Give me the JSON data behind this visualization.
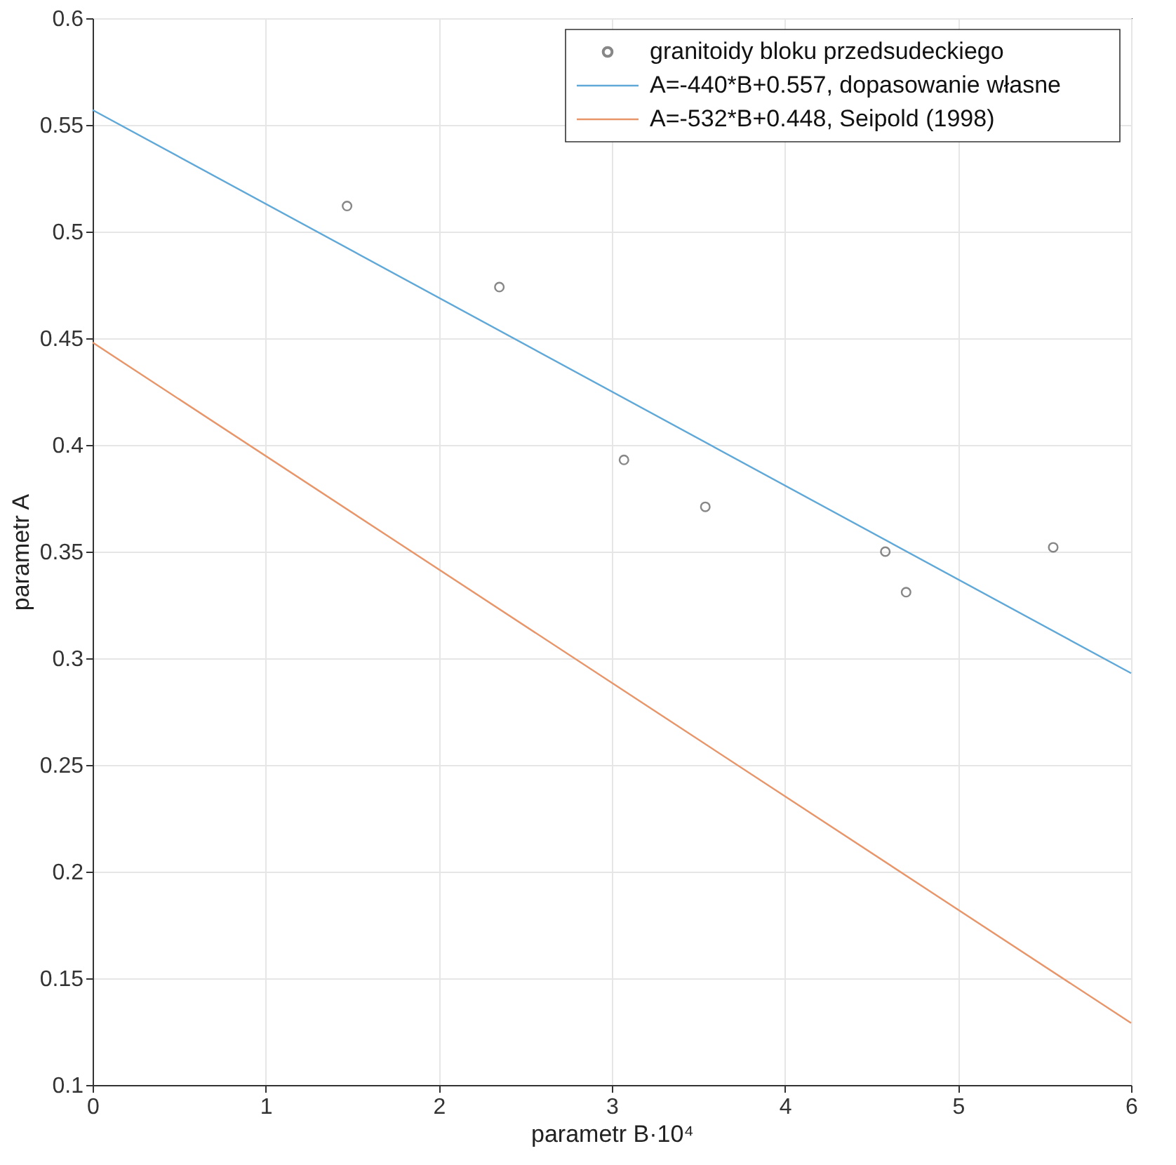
{
  "chart_data": {
    "type": "scatter",
    "xlabel": "parametr B·10⁴",
    "ylabel": "parametr A",
    "xlim": [
      0,
      6
    ],
    "ylim": [
      0.1,
      0.6
    ],
    "xticks": [
      0,
      1,
      2,
      3,
      4,
      5,
      6
    ],
    "yticks": [
      0.1,
      0.15,
      0.2,
      0.25,
      0.3,
      0.35,
      0.4,
      0.45,
      0.5,
      0.55,
      0.6
    ],
    "grid": true,
    "legend": "top right",
    "series": [
      {
        "name": "granitoidy bloku przedsudeckiego",
        "marker": "circle",
        "color": "#555555",
        "x": [
          1.47,
          2.35,
          3.07,
          3.54,
          4.58,
          4.7,
          5.55
        ],
        "values": [
          0.512,
          0.474,
          0.393,
          0.371,
          0.35,
          0.331,
          0.352
        ]
      },
      {
        "name": "A=-440*B+0.557, dopasowanie własne",
        "type": "line",
        "marker": "none",
        "color": "#5fa8d8",
        "x": [
          0,
          6
        ],
        "values": [
          0.557,
          0.293
        ]
      },
      {
        "name": "A=-532*B+0.448, Seipold (1998)",
        "type": "line",
        "marker": "none",
        "color": "#e8956a",
        "x": [
          0,
          6
        ],
        "values": [
          0.448,
          0.129
        ]
      }
    ]
  }
}
